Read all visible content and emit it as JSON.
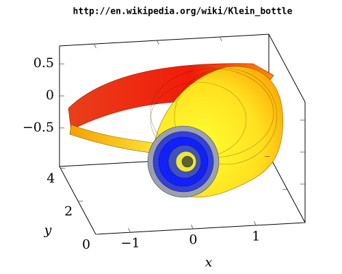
{
  "chart_data": {
    "type": "surface3d",
    "title": "http://en.wikipedia.org/wiki/Klein_bottle",
    "x_label": "x",
    "y_label": "y",
    "xlim": [
      -1.55,
      1.78
    ],
    "ylim": [
      0,
      4.1
    ],
    "zlim": [
      -1.1,
      0.78
    ],
    "xticks": [
      {
        "value": -1,
        "label": "−1"
      },
      0,
      1
    ],
    "yticks": [
      0,
      2,
      4
    ],
    "zticks": [
      0.5,
      0,
      {
        "value": -0.5,
        "label": "−0.5"
      }
    ]
  }
}
